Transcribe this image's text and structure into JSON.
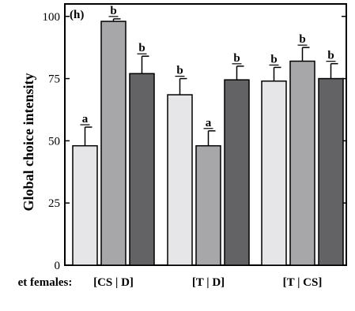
{
  "chart_data": {
    "type": "bar",
    "panel_label": "(h)",
    "ylabel": "Global choice intensity",
    "xlabel_prefix": "et females:",
    "ylim": [
      0,
      105
    ],
    "yticks": [
      0,
      25,
      50,
      75,
      100
    ],
    "grid": false,
    "legend": "none",
    "categories": [
      "[CS | D]",
      "[T | D]",
      "[T | CS]"
    ],
    "series": [
      {
        "color": "#e6e6e8",
        "values": [
          48,
          68.5,
          74
        ],
        "errors": [
          7.5,
          6.5,
          5.5
        ],
        "letters": [
          "a",
          "b",
          "b"
        ]
      },
      {
        "color": "#a7a7a9",
        "values": [
          98,
          48,
          82
        ],
        "errors": [
          1,
          6,
          5.5
        ],
        "letters": [
          "b",
          "a",
          "b"
        ]
      },
      {
        "color": "#636366",
        "values": [
          77,
          74.5,
          75
        ],
        "errors": [
          7,
          5.5,
          6
        ],
        "letters": [
          "b",
          "b",
          "b"
        ]
      }
    ]
  }
}
